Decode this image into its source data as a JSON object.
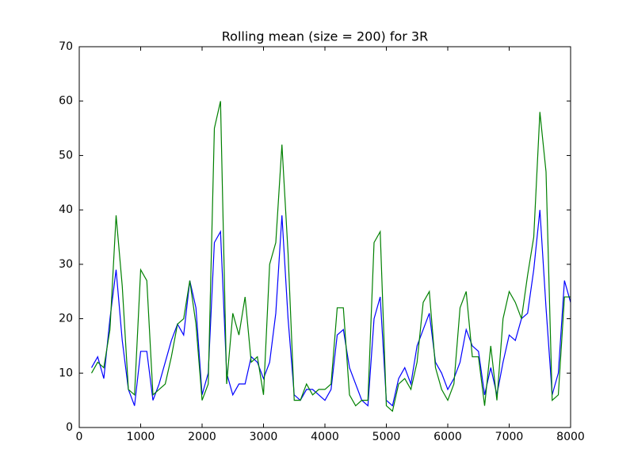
{
  "chart_data": {
    "type": "line",
    "title": "Rolling mean (size = 200) for 3R",
    "x": [
      200,
      300,
      400,
      500,
      600,
      700,
      800,
      900,
      1000,
      1100,
      1200,
      1300,
      1400,
      1500,
      1600,
      1700,
      1800,
      1900,
      2000,
      2100,
      2200,
      2300,
      2400,
      2500,
      2600,
      2700,
      2800,
      2900,
      3000,
      3100,
      3200,
      3300,
      3400,
      3500,
      3600,
      3700,
      3800,
      3900,
      4000,
      4100,
      4200,
      4300,
      4400,
      4500,
      4600,
      4700,
      4800,
      4900,
      5000,
      5100,
      5200,
      5300,
      5400,
      5500,
      5600,
      5700,
      5800,
      5900,
      6000,
      6100,
      6200,
      6300,
      6400,
      6500,
      6600,
      6700,
      6800,
      6900,
      7000,
      7100,
      7200,
      7300,
      7400,
      7500,
      7600,
      7700,
      7800,
      7900,
      8000
    ],
    "series": [
      {
        "color": "#0000ff",
        "values": [
          11,
          13,
          9,
          20,
          29,
          16,
          7,
          4,
          14,
          14,
          5,
          8,
          12,
          16,
          19,
          17,
          27,
          22,
          6,
          10,
          34,
          36,
          10,
          6,
          8,
          8,
          13,
          12,
          9,
          12,
          21,
          39,
          20,
          6,
          5,
          7,
          7,
          6,
          5,
          7,
          17,
          18,
          11,
          8,
          5,
          4,
          20,
          24,
          5,
          4,
          9,
          11,
          8,
          15,
          18,
          21,
          12,
          10,
          7,
          9,
          12,
          18,
          15,
          14,
          6,
          11,
          6,
          12,
          17,
          16,
          20,
          21,
          29,
          40,
          22,
          6,
          10,
          27,
          23
        ]
      },
      {
        "color": "#008000",
        "values": [
          10,
          12,
          11,
          18,
          39,
          26,
          7,
          6,
          29,
          27,
          6,
          7,
          8,
          13,
          19,
          20,
          27,
          19,
          5,
          8,
          55,
          60,
          8,
          21,
          17,
          24,
          12,
          13,
          6,
          30,
          34,
          52,
          32,
          5,
          5,
          8,
          6,
          7,
          7,
          8,
          22,
          22,
          6,
          4,
          5,
          5,
          34,
          36,
          4,
          3,
          8,
          9,
          7,
          12,
          23,
          25,
          11,
          7,
          5,
          8,
          22,
          25,
          13,
          13,
          4,
          15,
          5,
          20,
          25,
          23,
          20,
          28,
          35,
          58,
          47,
          5,
          6,
          24,
          24
        ]
      }
    ],
    "xlim": [
      0,
      8000
    ],
    "xticks": [
      0,
      1000,
      2000,
      3000,
      4000,
      5000,
      6000,
      7000,
      8000
    ],
    "ylim": [
      0,
      70
    ],
    "yticks": [
      0,
      10,
      20,
      30,
      40,
      50,
      60,
      70
    ]
  }
}
